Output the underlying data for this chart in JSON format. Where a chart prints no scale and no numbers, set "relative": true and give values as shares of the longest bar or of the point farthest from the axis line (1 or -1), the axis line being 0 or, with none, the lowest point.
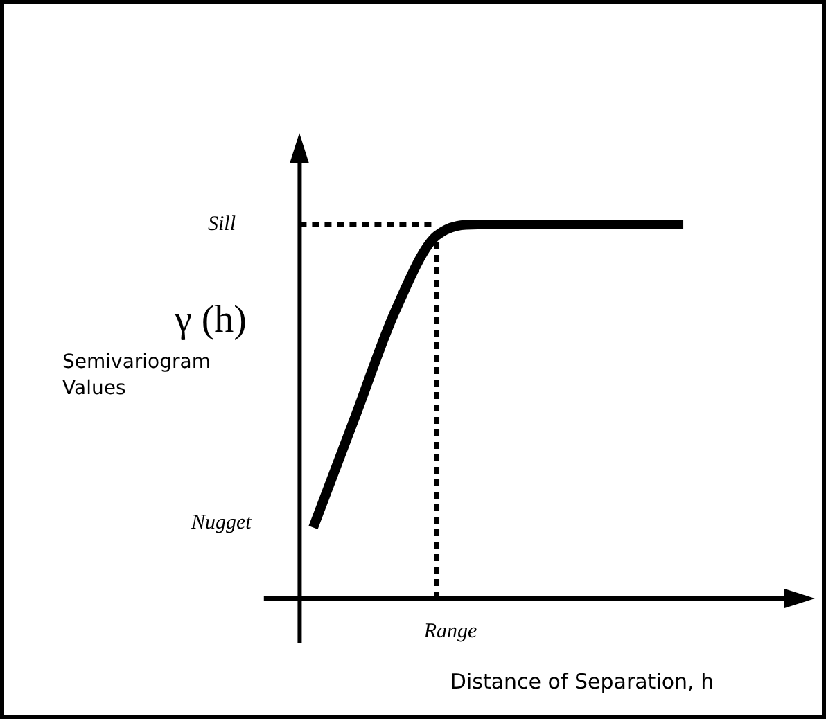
{
  "chart_data": {
    "type": "line",
    "relative": true,
    "ylabel": "γ (h)",
    "xlabel": "Distance of Separation, h",
    "categories": [
      null,
      null,
      null,
      null,
      null,
      null,
      null,
      null,
      null,
      null
    ],
    "series": [
      {
        "color": "#000000",
        "values": [
          0.19,
          0.48,
          0.77,
          0.97,
          1.0,
          1.0,
          1.0,
          1.0,
          1.0,
          1.0
        ]
      }
    ],
    "ref_lines": [
      {
        "axis": "y",
        "value": 1,
        "label": "Sill",
        "line_style": "dotted",
        "color": "#000000"
      }
    ],
    "annotations": [
      "Semivariogram Values",
      "Nugget",
      "Range"
    ],
    "marker": "none",
    "line_style": "solid",
    "grid": false,
    "legend": false
  }
}
